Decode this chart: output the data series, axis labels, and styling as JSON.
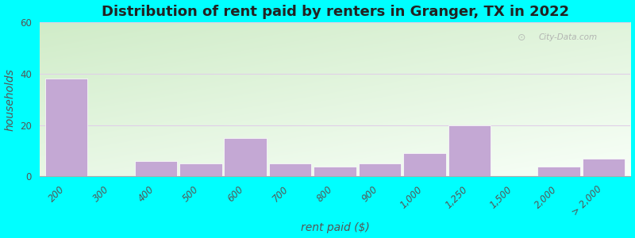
{
  "title": "Distribution of rent paid by renters in Granger, TX in 2022",
  "xlabel": "rent paid ($)",
  "ylabel": "households",
  "bar_color": "#c4a8d4",
  "outer_background": "#00ffff",
  "bg_color_topleft": "#d8f0d0",
  "bg_color_topright": "#e8f8e0",
  "bg_color_bottom": "#f8fff8",
  "ylim": [
    0,
    60
  ],
  "yticks": [
    0,
    20,
    40,
    60
  ],
  "categories": [
    "200",
    "300",
    "400",
    "500",
    "600",
    "700",
    "800",
    "900",
    "1,000",
    "1,250",
    "1,500",
    "2,000",
    "> 2,000"
  ],
  "values": [
    38,
    0,
    6,
    5,
    15,
    5,
    4,
    5,
    9,
    20,
    0,
    4,
    7
  ],
  "bar_positions": [
    0,
    1,
    2,
    3,
    4,
    5,
    6,
    7,
    8,
    9,
    10,
    11,
    12
  ],
  "watermark": "City-Data.com",
  "title_fontsize": 13,
  "axis_label_fontsize": 10,
  "tick_fontsize": 8.5,
  "grid_color": "#e0d0e8",
  "spine_color": "#aaaaaa"
}
